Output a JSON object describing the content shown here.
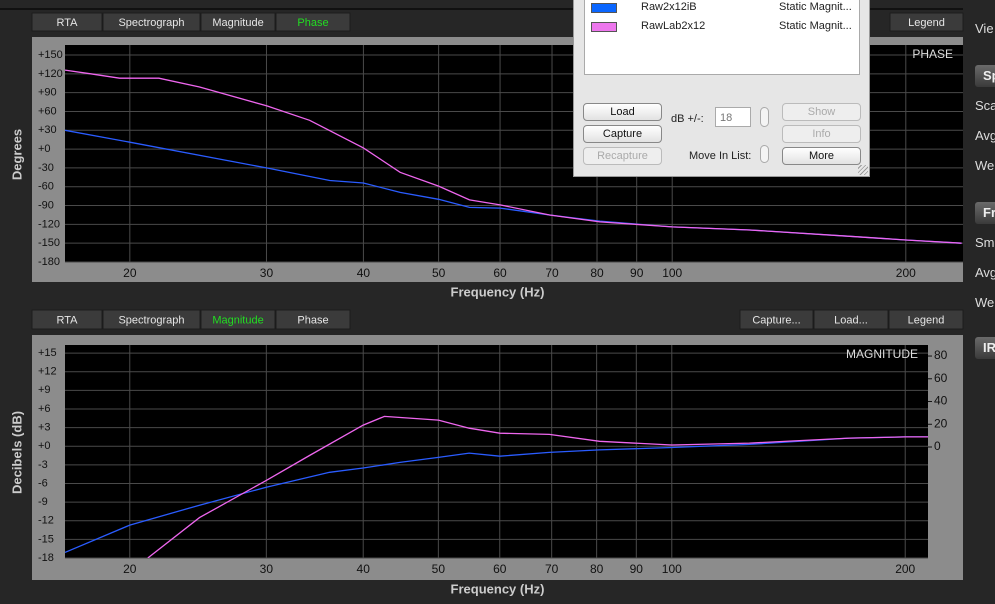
{
  "chart_data": [
    {
      "type": "line",
      "title": "PHASE",
      "tabs_left": [
        "RTA",
        "Spectrograph",
        "Magnitude",
        "Phase"
      ],
      "tabs_right": [
        "Legend"
      ],
      "active_tab": 3,
      "active_color": "#22dd22",
      "xlabel": "Frequency (Hz)",
      "ylabel": "Degrees",
      "log_x": true,
      "grid": true,
      "xlim": [
        16.5,
        237
      ],
      "xticks": [
        20,
        30,
        40,
        50,
        60,
        70,
        80,
        90,
        100,
        200
      ],
      "ylim": [
        -180,
        166
      ],
      "yticks": [
        {
          "value": 150,
          "label": "+150"
        },
        {
          "value": 120,
          "label": "+120"
        },
        {
          "value": 90,
          "label": "+90"
        },
        {
          "value": 60,
          "label": "+60"
        },
        {
          "value": 30,
          "label": "+30"
        },
        {
          "value": 0,
          "label": "+0"
        },
        -30,
        -60,
        -90,
        -120,
        -150,
        -180
      ],
      "series": [
        {
          "name": "Raw2x12iB",
          "color": "#2a5cff",
          "x": [
            16.5,
            20,
            30,
            36.2,
            40,
            44.6,
            50,
            54.8,
            60,
            69.5,
            80.7,
            100,
            125.9,
            169.4,
            200,
            236
          ],
          "values": [
            30,
            11,
            -30,
            -50,
            -54,
            -69,
            -80,
            -93,
            -94,
            -105,
            -115,
            -124,
            -129,
            -139,
            -145,
            -150
          ]
        },
        {
          "name": "RawLab2x12",
          "color": "#ee66ee",
          "x": [
            16.5,
            17.8,
            19.4,
            21.8,
            24.6,
            30,
            34.1,
            40,
            44.6,
            50,
            54.8,
            60,
            69.5,
            80.7,
            100,
            125.9,
            169.4,
            200,
            236
          ],
          "values": [
            126,
            120,
            113,
            113,
            99,
            69,
            46,
            2,
            -37,
            -59,
            -81,
            -89,
            -105,
            -116,
            -124,
            -129,
            -139,
            -145,
            -150
          ]
        }
      ]
    },
    {
      "type": "line",
      "title": "MAGNITUDE",
      "tabs_left": [
        "RTA",
        "Spectrograph",
        "Magnitude",
        "Phase"
      ],
      "tabs_right": [
        "Capture...",
        "Load...",
        "Legend"
      ],
      "active_tab": 2,
      "active_color": "#22dd22",
      "xlabel": "Frequency (Hz)",
      "ylabel": "Decibels (dB)",
      "log_x": true,
      "grid": true,
      "xlim": [
        16.5,
        214
      ],
      "xticks": [
        20,
        30,
        40,
        50,
        60,
        70,
        80,
        90,
        100,
        200
      ],
      "ylim": [
        -18,
        16.3
      ],
      "yticks": [
        {
          "value": 15,
          "label": "+15"
        },
        {
          "value": 12,
          "label": "+12"
        },
        {
          "value": 9,
          "label": "+9"
        },
        {
          "value": 6,
          "label": "+6"
        },
        {
          "value": 3,
          "label": "+3"
        },
        {
          "value": 0,
          "label": "+0"
        },
        -3,
        -6,
        -9,
        -12,
        -15,
        -18
      ],
      "y2lim": [
        -97.6,
        89.7
      ],
      "y2ticks": [
        0,
        20,
        40,
        60,
        80
      ],
      "series": [
        {
          "name": "Raw2x12iB",
          "color": "#2a5cff",
          "x": [
            16.5,
            20,
            24.6,
            30,
            36.2,
            40,
            44.6,
            50,
            54.8,
            60,
            69.5,
            80.7,
            100,
            125.9,
            169.4,
            200,
            214
          ],
          "values": [
            -17.1,
            -12.7,
            -9.5,
            -6.6,
            -4.2,
            -3.5,
            -2.6,
            -1.8,
            -1.1,
            -1.6,
            -1.0,
            -0.6,
            -0.2,
            0.3,
            1.3,
            1.5,
            1.5
          ]
        },
        {
          "name": "RawLab2x12",
          "color": "#ee66ee",
          "x": [
            21.1,
            24.6,
            30,
            34.1,
            40,
            42.6,
            50,
            54.8,
            60,
            69.5,
            80.7,
            100,
            125.9,
            169.4,
            200,
            214
          ],
          "values": [
            -18,
            -11.5,
            -5.5,
            -1.5,
            3.4,
            4.8,
            4.2,
            2.9,
            2.1,
            1.9,
            0.8,
            0.2,
            0.5,
            1.3,
            1.5,
            1.5
          ]
        }
      ]
    }
  ],
  "popup": {
    "rows": [
      {
        "color": "#0a66ff",
        "name": "Raw2x12iB",
        "kind": "Static Magnit..."
      },
      {
        "color": "#ee77ee",
        "name": "RawLab2x12",
        "kind": "Static Magnit..."
      }
    ],
    "buttons_left": [
      {
        "label": "Load",
        "enabled": true
      },
      {
        "label": "Capture",
        "enabled": true
      },
      {
        "label": "Recapture",
        "enabled": false
      }
    ],
    "buttons_right": [
      {
        "label": "Show",
        "enabled": false
      },
      {
        "label": "Info",
        "enabled": false
      },
      {
        "label": "More",
        "enabled": true
      }
    ],
    "db_label": "dB +/-:",
    "db_value": "18",
    "move_label": "Move In List:"
  },
  "sidebar": [
    {
      "text": "Vie",
      "button": false
    },
    {
      "text": "Sp",
      "button": true
    },
    {
      "text": "Sca",
      "button": false
    },
    {
      "text": "Avg",
      "button": false
    },
    {
      "text": "Wei",
      "button": false
    },
    {
      "text": "Fr",
      "button": true
    },
    {
      "text": "Sm",
      "button": false
    },
    {
      "text": "Avg",
      "button": false
    },
    {
      "text": "Wei",
      "button": false
    },
    {
      "text": "IR",
      "button": true
    }
  ]
}
